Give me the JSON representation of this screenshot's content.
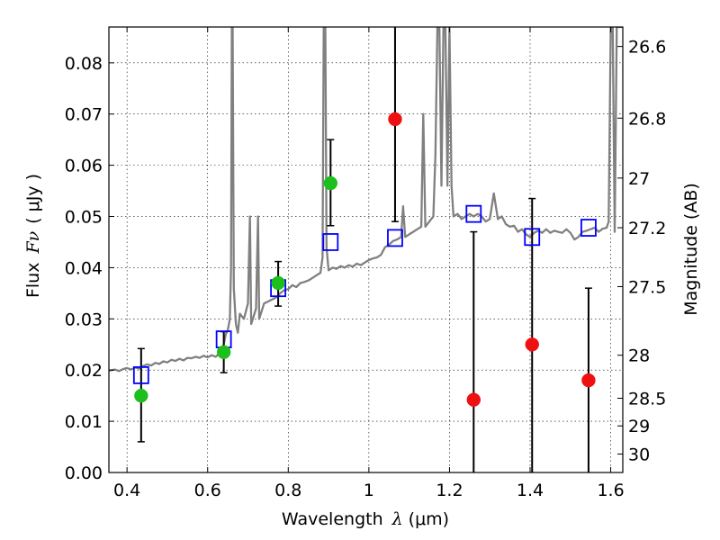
{
  "chart_data": {
    "type": "scatter",
    "xlabel": {
      "prefix": "Wavelength",
      "symbol": "λ",
      "unit": "(μm)"
    },
    "ylabel": {
      "prefix": "Flux",
      "symbol": "Fν",
      "unit": "( μJy )"
    },
    "y2label": "Magnitude (AB)",
    "xlim": [
      0.355,
      1.63
    ],
    "ylim": [
      0.0,
      0.087
    ],
    "grid": true,
    "x_ticks": [
      {
        "value": 0.4,
        "label": "0.4"
      },
      {
        "value": 0.6,
        "label": "0.6"
      },
      {
        "value": 0.8,
        "label": "0.8"
      },
      {
        "value": 1.0,
        "label": "1"
      },
      {
        "value": 1.2,
        "label": "1.2"
      },
      {
        "value": 1.4,
        "label": "1.4"
      },
      {
        "value": 1.6,
        "label": "1.6"
      }
    ],
    "y_ticks": [
      {
        "value": 0.0,
        "label": "0.00"
      },
      {
        "value": 0.01,
        "label": "0.01"
      },
      {
        "value": 0.02,
        "label": "0.02"
      },
      {
        "value": 0.03,
        "label": "0.03"
      },
      {
        "value": 0.04,
        "label": "0.04"
      },
      {
        "value": 0.05,
        "label": "0.05"
      },
      {
        "value": 0.06,
        "label": "0.06"
      },
      {
        "value": 0.07,
        "label": "0.07"
      },
      {
        "value": 0.08,
        "label": "0.08"
      }
    ],
    "y2_ticks": [
      {
        "label": "26.6",
        "flux": 0.0832
      },
      {
        "label": "26.8",
        "flux": 0.0692
      },
      {
        "label": "27",
        "flux": 0.0575
      },
      {
        "label": "27.2",
        "flux": 0.0478
      },
      {
        "label": "27.5",
        "flux": 0.0363
      },
      {
        "label": "28",
        "flux": 0.0229
      },
      {
        "label": "28.5",
        "flux": 0.0145
      },
      {
        "label": "29",
        "flux": 0.0091
      },
      {
        "label": "30",
        "flux": 0.0036
      }
    ],
    "series": [
      {
        "kind": "model-spectrum",
        "color": "#808080",
        "points": [
          [
            0.355,
            0.0199
          ],
          [
            0.37,
            0.0201
          ],
          [
            0.38,
            0.0198
          ],
          [
            0.39,
            0.0202
          ],
          [
            0.4,
            0.0204
          ],
          [
            0.41,
            0.0201
          ],
          [
            0.42,
            0.0205
          ],
          [
            0.43,
            0.0203
          ],
          [
            0.44,
            0.0208
          ],
          [
            0.45,
            0.0211
          ],
          [
            0.46,
            0.0209
          ],
          [
            0.47,
            0.0214
          ],
          [
            0.48,
            0.0212
          ],
          [
            0.49,
            0.0217
          ],
          [
            0.5,
            0.0215
          ],
          [
            0.51,
            0.022
          ],
          [
            0.52,
            0.0218
          ],
          [
            0.53,
            0.0222
          ],
          [
            0.54,
            0.0219
          ],
          [
            0.55,
            0.0224
          ],
          [
            0.56,
            0.0223
          ],
          [
            0.57,
            0.0226
          ],
          [
            0.58,
            0.0224
          ],
          [
            0.59,
            0.0228
          ],
          [
            0.6,
            0.0225
          ],
          [
            0.61,
            0.0229
          ],
          [
            0.62,
            0.0226
          ],
          [
            0.63,
            0.0233
          ],
          [
            0.64,
            0.025
          ],
          [
            0.645,
            0.027
          ],
          [
            0.65,
            0.0278
          ],
          [
            0.655,
            0.03
          ],
          [
            0.658,
            0.04
          ],
          [
            0.66,
            0.087
          ],
          [
            0.662,
            0.087
          ],
          [
            0.665,
            0.036
          ],
          [
            0.67,
            0.029
          ],
          [
            0.675,
            0.0273
          ],
          [
            0.68,
            0.031
          ],
          [
            0.69,
            0.03
          ],
          [
            0.7,
            0.033
          ],
          [
            0.705,
            0.05
          ],
          [
            0.708,
            0.029
          ],
          [
            0.72,
            0.032
          ],
          [
            0.725,
            0.05
          ],
          [
            0.728,
            0.03
          ],
          [
            0.74,
            0.033
          ],
          [
            0.75,
            0.0334
          ],
          [
            0.76,
            0.0338
          ],
          [
            0.77,
            0.0342
          ],
          [
            0.78,
            0.035
          ],
          [
            0.79,
            0.0356
          ],
          [
            0.8,
            0.0358
          ],
          [
            0.81,
            0.0366
          ],
          [
            0.82,
            0.0362
          ],
          [
            0.83,
            0.037
          ],
          [
            0.84,
            0.0372
          ],
          [
            0.85,
            0.0375
          ],
          [
            0.86,
            0.038
          ],
          [
            0.87,
            0.0385
          ],
          [
            0.88,
            0.039
          ],
          [
            0.885,
            0.042
          ],
          [
            0.888,
            0.087
          ],
          [
            0.892,
            0.087
          ],
          [
            0.895,
            0.044
          ],
          [
            0.9,
            0.0395
          ],
          [
            0.91,
            0.04
          ],
          [
            0.92,
            0.0398
          ],
          [
            0.93,
            0.0403
          ],
          [
            0.94,
            0.04
          ],
          [
            0.95,
            0.0405
          ],
          [
            0.96,
            0.0402
          ],
          [
            0.97,
            0.0408
          ],
          [
            0.98,
            0.0405
          ],
          [
            0.99,
            0.041
          ],
          [
            1.0,
            0.0415
          ],
          [
            1.01,
            0.0418
          ],
          [
            1.02,
            0.042
          ],
          [
            1.03,
            0.0425
          ],
          [
            1.04,
            0.044
          ],
          [
            1.05,
            0.0445
          ],
          [
            1.06,
            0.0452
          ],
          [
            1.07,
            0.0455
          ],
          [
            1.08,
            0.046
          ],
          [
            1.085,
            0.052
          ],
          [
            1.09,
            0.046
          ],
          [
            1.1,
            0.0465
          ],
          [
            1.11,
            0.047
          ],
          [
            1.12,
            0.0475
          ],
          [
            1.13,
            0.048
          ],
          [
            1.135,
            0.07
          ],
          [
            1.14,
            0.048
          ],
          [
            1.15,
            0.049
          ],
          [
            1.16,
            0.05
          ],
          [
            1.165,
            0.062
          ],
          [
            1.17,
            0.087
          ],
          [
            1.175,
            0.087
          ],
          [
            1.18,
            0.056
          ],
          [
            1.185,
            0.087
          ],
          [
            1.19,
            0.087
          ],
          [
            1.195,
            0.056
          ],
          [
            1.2,
            0.087
          ],
          [
            1.205,
            0.056
          ],
          [
            1.21,
            0.05
          ],
          [
            1.22,
            0.0505
          ],
          [
            1.23,
            0.0495
          ],
          [
            1.24,
            0.05
          ],
          [
            1.25,
            0.0505
          ],
          [
            1.26,
            0.05
          ],
          [
            1.27,
            0.0505
          ],
          [
            1.28,
            0.05
          ],
          [
            1.29,
            0.049
          ],
          [
            1.3,
            0.0495
          ],
          [
            1.31,
            0.0545
          ],
          [
            1.32,
            0.0495
          ],
          [
            1.33,
            0.05
          ],
          [
            1.34,
            0.0485
          ],
          [
            1.35,
            0.048
          ],
          [
            1.36,
            0.0482
          ],
          [
            1.37,
            0.047
          ],
          [
            1.38,
            0.0475
          ],
          [
            1.39,
            0.0465
          ],
          [
            1.4,
            0.046
          ],
          [
            1.41,
            0.0468
          ],
          [
            1.42,
            0.0472
          ],
          [
            1.43,
            0.0468
          ],
          [
            1.44,
            0.0475
          ],
          [
            1.45,
            0.0468
          ],
          [
            1.46,
            0.0472
          ],
          [
            1.47,
            0.047
          ],
          [
            1.48,
            0.0468
          ],
          [
            1.49,
            0.0475
          ],
          [
            1.5,
            0.0468
          ],
          [
            1.51,
            0.0455
          ],
          [
            1.52,
            0.046
          ],
          [
            1.53,
            0.047
          ],
          [
            1.54,
            0.0472
          ],
          [
            1.55,
            0.0475
          ],
          [
            1.56,
            0.0478
          ],
          [
            1.57,
            0.047
          ],
          [
            1.58,
            0.0476
          ],
          [
            1.59,
            0.0478
          ],
          [
            1.595,
            0.049
          ],
          [
            1.6,
            0.087
          ],
          [
            1.605,
            0.087
          ],
          [
            1.61,
            0.047
          ],
          [
            1.615,
            0.087
          ],
          [
            1.62,
            0.087
          ],
          [
            1.625,
            0.087
          ],
          [
            1.63,
            0.087
          ]
        ]
      },
      {
        "kind": "model-photometry",
        "marker": "open-square",
        "color": "#0000ff",
        "points": [
          [
            0.435,
            0.019
          ],
          [
            0.64,
            0.026
          ],
          [
            0.775,
            0.036
          ],
          [
            0.905,
            0.045
          ],
          [
            1.065,
            0.0458
          ],
          [
            1.26,
            0.0505
          ],
          [
            1.405,
            0.046
          ],
          [
            1.545,
            0.0478
          ]
        ]
      },
      {
        "kind": "detections",
        "marker": "filled-circle",
        "color": "#1cbf1c",
        "points": [
          {
            "x": 0.435,
            "y": 0.015,
            "ylo": 0.006,
            "yhi": 0.0242
          },
          {
            "x": 0.64,
            "y": 0.0235,
            "ylo": 0.0195,
            "yhi": 0.0275
          },
          {
            "x": 0.775,
            "y": 0.037,
            "ylo": 0.0325,
            "yhi": 0.0412
          },
          {
            "x": 0.905,
            "y": 0.0565,
            "ylo": 0.0482,
            "yhi": 0.065
          }
        ]
      },
      {
        "kind": "non-detections",
        "marker": "filled-circle",
        "color": "#ee1111",
        "points": [
          {
            "x": 1.065,
            "y": 0.069,
            "ylo": 0.049,
            "yhi": 0.087
          },
          {
            "x": 1.26,
            "y": 0.0142,
            "ylo": 0.0,
            "yhi": 0.047
          },
          {
            "x": 1.405,
            "y": 0.025,
            "ylo": 0.0,
            "yhi": 0.0535
          },
          {
            "x": 1.545,
            "y": 0.018,
            "ylo": 0.0,
            "yhi": 0.036
          }
        ]
      }
    ]
  }
}
